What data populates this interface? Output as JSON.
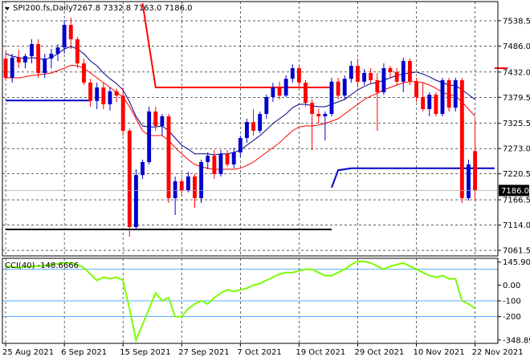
{
  "header": {
    "symbol": "SPI200.fs,Daily",
    "ohlc_text": "7267.8 7332.8 7163.0 7186.0"
  },
  "indicator": {
    "label": "CCI(40) -148.6666"
  },
  "colors": {
    "bull": "#0000cc",
    "bear": "#ff0000",
    "ma_fast": "#00008b",
    "ma_slow": "#ff0000",
    "cci_line": "#7cfc00",
    "grid": "#000000",
    "level_line": "#1e90ff",
    "support": "#000000",
    "price_tag_bg": "#000000",
    "price_tag_fg": "#ffffff"
  },
  "chart_data": [
    {
      "type": "candlestick",
      "title": "SPI200.fs,Daily",
      "ylim": [
        7050,
        7575
      ],
      "price_ticks": [
        "7538.5",
        "7486.0",
        "7432.0",
        "7379.5",
        "7325.5",
        "7273.0",
        "7220.5",
        "7166.5",
        "7114.0",
        "7061.5"
      ],
      "price_tick_values": [
        7538.5,
        7486.0,
        7432.0,
        7379.5,
        7325.5,
        7273.0,
        7220.5,
        7166.5,
        7114.0,
        7061.5
      ],
      "current_price": "7186.0",
      "current_price_value": 7186.0,
      "date_labels": [
        "25 Aug 2021",
        "6 Sep 2021",
        "15 Sep 2021",
        "27 Sep 2021",
        "7 Oct 2021",
        "19 Oct 2021",
        "29 Oct 2021",
        "10 Nov 2021",
        "22 Nov 2021"
      ],
      "date_label_index": [
        0,
        9,
        18,
        27,
        36,
        45,
        54,
        63,
        72
      ],
      "grid": true,
      "candles": [
        [
          7460,
          7475,
          7415,
          7420
        ],
        [
          7420,
          7470,
          7410,
          7462
        ],
        [
          7462,
          7478,
          7440,
          7452
        ],
        [
          7452,
          7470,
          7440,
          7465
        ],
        [
          7465,
          7500,
          7450,
          7490
        ],
        [
          7490,
          7500,
          7420,
          7430
        ],
        [
          7430,
          7470,
          7420,
          7460
        ],
        [
          7460,
          7480,
          7440,
          7470
        ],
        [
          7470,
          7490,
          7455,
          7483
        ],
        [
          7483,
          7540,
          7470,
          7530
        ],
        [
          7530,
          7545,
          7480,
          7500
        ],
        [
          7500,
          7505,
          7440,
          7450
        ],
        [
          7450,
          7460,
          7405,
          7410
        ],
        [
          7410,
          7418,
          7360,
          7372
        ],
        [
          7372,
          7410,
          7355,
          7400
        ],
        [
          7400,
          7410,
          7355,
          7365
        ],
        [
          7365,
          7400,
          7352,
          7392
        ],
        [
          7392,
          7398,
          7370,
          7383
        ],
        [
          7383,
          7400,
          7300,
          7310
        ],
        [
          7310,
          7315,
          7090,
          7110
        ],
        [
          7110,
          7230,
          7105,
          7218
        ],
        [
          7218,
          7250,
          7210,
          7245
        ],
        [
          7245,
          7360,
          7240,
          7350
        ],
        [
          7350,
          7360,
          7310,
          7320
        ],
        [
          7320,
          7345,
          7300,
          7340
        ],
        [
          7340,
          7345,
          7160,
          7170
        ],
        [
          7170,
          7215,
          7135,
          7205
        ],
        [
          7205,
          7212,
          7175,
          7185
        ],
        [
          7185,
          7225,
          7182,
          7215
        ],
        [
          7215,
          7220,
          7150,
          7170
        ],
        [
          7170,
          7250,
          7160,
          7245
        ],
        [
          7245,
          7265,
          7230,
          7258
        ],
        [
          7258,
          7270,
          7210,
          7220
        ],
        [
          7220,
          7270,
          7215,
          7262
        ],
        [
          7262,
          7270,
          7235,
          7240
        ],
        [
          7240,
          7275,
          7232,
          7265
        ],
        [
          7265,
          7300,
          7255,
          7295
        ],
        [
          7295,
          7335,
          7285,
          7328
        ],
        [
          7328,
          7355,
          7300,
          7310
        ],
        [
          7310,
          7350,
          7305,
          7345
        ],
        [
          7345,
          7385,
          7335,
          7380
        ],
        [
          7380,
          7410,
          7370,
          7400
        ],
        [
          7400,
          7412,
          7375,
          7383
        ],
        [
          7383,
          7425,
          7380,
          7418
        ],
        [
          7418,
          7448,
          7410,
          7440
        ],
        [
          7440,
          7445,
          7400,
          7410
        ],
        [
          7410,
          7415,
          7360,
          7368
        ],
        [
          7368,
          7375,
          7270,
          7345
        ],
        [
          7345,
          7355,
          7325,
          7340
        ],
        [
          7340,
          7350,
          7290,
          7345
        ],
        [
          7345,
          7420,
          7340,
          7412
        ],
        [
          7412,
          7420,
          7375,
          7383
        ],
        [
          7383,
          7425,
          7375,
          7418
        ],
        [
          7418,
          7455,
          7410,
          7445
        ],
        [
          7445,
          7460,
          7400,
          7412
        ],
        [
          7412,
          7438,
          7405,
          7430
        ],
        [
          7430,
          7440,
          7408,
          7415
        ],
        [
          7415,
          7430,
          7310,
          7390
        ],
        [
          7390,
          7450,
          7385,
          7440
        ],
        [
          7440,
          7445,
          7420,
          7432
        ],
        [
          7432,
          7440,
          7405,
          7412
        ],
        [
          7412,
          7462,
          7390,
          7455
        ],
        [
          7455,
          7460,
          7405,
          7413
        ],
        [
          7413,
          7420,
          7370,
          7380
        ],
        [
          7380,
          7410,
          7350,
          7355
        ],
        [
          7355,
          7390,
          7340,
          7385
        ],
        [
          7385,
          7390,
          7340,
          7345
        ],
        [
          7345,
          7420,
          7340,
          7415
        ],
        [
          7415,
          7420,
          7350,
          7358
        ],
        [
          7358,
          7420,
          7350,
          7415
        ],
        [
          7415,
          7420,
          7160,
          7170
        ],
        [
          7170,
          7250,
          7165,
          7240
        ],
        [
          7267.8,
          7332.8,
          7163.0,
          7186.0
        ]
      ],
      "ma_fast": [
        7470,
        7465,
        7462,
        7460,
        7462,
        7460,
        7458,
        7462,
        7470,
        7480,
        7485,
        7480,
        7470,
        7455,
        7445,
        7430,
        7418,
        7408,
        7395,
        7370,
        7340,
        7320,
        7318,
        7318,
        7320,
        7310,
        7295,
        7280,
        7272,
        7262,
        7262,
        7262,
        7260,
        7262,
        7262,
        7265,
        7270,
        7280,
        7290,
        7300,
        7312,
        7325,
        7335,
        7345,
        7358,
        7365,
        7365,
        7362,
        7360,
        7360,
        7365,
        7370,
        7375,
        7385,
        7395,
        7402,
        7408,
        7410,
        7415,
        7420,
        7425,
        7428,
        7430,
        7432,
        7428,
        7422,
        7415,
        7410,
        7405,
        7404,
        7395,
        7385,
        7375
      ],
      "ma_slow": [
        7420,
        7420,
        7420,
        7422,
        7425,
        7426,
        7428,
        7430,
        7435,
        7440,
        7446,
        7445,
        7440,
        7430,
        7420,
        7410,
        7400,
        7390,
        7380,
        7360,
        7335,
        7310,
        7300,
        7300,
        7300,
        7290,
        7275,
        7262,
        7250,
        7240,
        7235,
        7232,
        7230,
        7230,
        7230,
        7230,
        7232,
        7238,
        7245,
        7255,
        7265,
        7275,
        7285,
        7298,
        7310,
        7318,
        7320,
        7320,
        7322,
        7325,
        7330,
        7335,
        7345,
        7355,
        7365,
        7375,
        7382,
        7388,
        7395,
        7400,
        7405,
        7410,
        7412,
        7412,
        7410,
        7405,
        7398,
        7390,
        7385,
        7382,
        7370,
        7355,
        7340
      ],
      "cci": [
        120,
        115,
        110,
        115,
        118,
        120,
        125,
        130,
        135,
        140,
        140,
        130,
        110,
        70,
        30,
        50,
        40,
        50,
        30,
        -150,
        -350,
        -250,
        -150,
        -50,
        -100,
        -80,
        -200,
        -200,
        -150,
        -120,
        -100,
        -120,
        -80,
        -50,
        -30,
        -40,
        -30,
        -20,
        0,
        10,
        30,
        50,
        70,
        80,
        80,
        90,
        100,
        100,
        80,
        60,
        60,
        80,
        100,
        130,
        150,
        150,
        140,
        120,
        100,
        120,
        130,
        140,
        120,
        100,
        80,
        60,
        50,
        60,
        40,
        40,
        -100,
        -120,
        -148.67
      ],
      "cci_ticks": [
        "145.905",
        "0.00",
        "-100",
        "-200",
        "-348.897"
      ],
      "cci_tick_values": [
        145.905,
        0,
        -100,
        -200,
        -348.897
      ],
      "cci_levels": [
        100,
        -100,
        -200
      ],
      "cci_range": [
        -370,
        170
      ],
      "annotations": {
        "red_trend": [
          [
            21,
            7575
          ],
          [
            23,
            7400
          ],
          [
            50,
            7400
          ]
        ],
        "red_short": [
          [
            75,
            7440
          ],
          [
            77,
            7440
          ]
        ],
        "blue_left": [
          [
            0,
            7373
          ],
          [
            13,
            7373
          ]
        ],
        "blue_right": [
          [
            50,
            7192
          ],
          [
            51,
            7228
          ],
          [
            53,
            7232
          ],
          [
            75,
            7232
          ]
        ],
        "black_support": [
          [
            0,
            7105
          ],
          [
            50,
            7105
          ]
        ]
      }
    }
  ]
}
